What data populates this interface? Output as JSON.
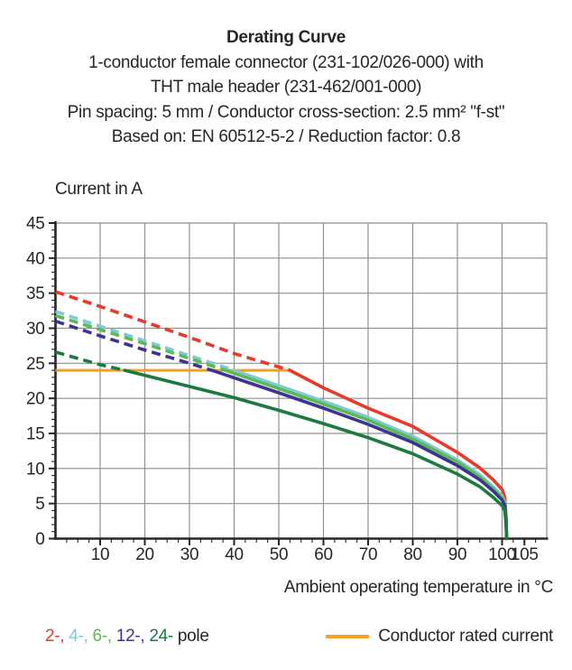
{
  "header": {
    "title": "Derating Curve",
    "lines": [
      "1-conductor female connector (231-102/026-000) with",
      "THT male header (231-462/001-000)",
      "Pin spacing: 5 mm / Conductor cross-section: 2.5 mm² \"f-st\"",
      "Based on: EN 60512-5-2 / Reduction factor: 0.8"
    ]
  },
  "y_axis_title": "Current in A",
  "x_axis_title": "Ambient operating temperature in °C",
  "legend": {
    "poles": [
      {
        "label": "2-",
        "color": "#e8392b"
      },
      {
        "label": "4-",
        "color": "#7cccd3"
      },
      {
        "label": "6-",
        "color": "#5eb854"
      },
      {
        "label": "12-",
        "color": "#3c3494"
      },
      {
        "label": "24-",
        "color": "#1a7a40"
      }
    ],
    "separator": ", ",
    "poles_suffix": "pole",
    "rated_label": "Conductor rated current",
    "rated_color": "#f5a01e"
  },
  "chart_data": {
    "type": "line",
    "title": "Derating Curve",
    "xlabel": "Ambient operating temperature in °C",
    "ylabel": "Current in A",
    "xlim": [
      0,
      110
    ],
    "ylim": [
      0,
      45
    ],
    "x_major_ticks": [
      10,
      20,
      30,
      40,
      50,
      60,
      70,
      80,
      90,
      100,
      105
    ],
    "x_minor_step": 2.5,
    "y_major_ticks": [
      0,
      5,
      10,
      15,
      20,
      25,
      30,
      35,
      40,
      45
    ],
    "y_minor_step": 1,
    "grid_x": [
      10,
      20,
      30,
      40,
      50,
      60,
      70,
      80,
      90,
      100,
      110
    ],
    "grid_y": [
      5,
      10,
      15,
      20,
      25,
      30,
      35,
      40,
      45
    ],
    "grid_on": true,
    "legend_position": "bottom",
    "dash_above": 24,
    "rated_current": {
      "value": 24,
      "x_start": 0,
      "x_end": 52.5,
      "color": "#f5a01e",
      "label": "Conductor rated current"
    },
    "colors": {
      "grid": "#8f8f8f",
      "axis": "#262626",
      "text": "#262626"
    },
    "series": [
      {
        "name": "2-pole",
        "color": "#e8392b",
        "points": [
          [
            0,
            35.2
          ],
          [
            10,
            33.1
          ],
          [
            20,
            30.9
          ],
          [
            30,
            28.7
          ],
          [
            40,
            26.4
          ],
          [
            52.5,
            24.0
          ],
          [
            60,
            21.5
          ],
          [
            70,
            18.6
          ],
          [
            80,
            16.0
          ],
          [
            90,
            12.3
          ],
          [
            95,
            10.1
          ],
          [
            98,
            8.4
          ],
          [
            100,
            7.0
          ],
          [
            100.6,
            5.9
          ],
          [
            100.9,
            3.0
          ],
          [
            101,
            0
          ]
        ]
      },
      {
        "name": "4-pole",
        "color": "#7cccd3",
        "points": [
          [
            0,
            32.4
          ],
          [
            10,
            30.3
          ],
          [
            20,
            28.2
          ],
          [
            30,
            26.1
          ],
          [
            40,
            24.0
          ],
          [
            50,
            21.8
          ],
          [
            60,
            19.6
          ],
          [
            70,
            17.3
          ],
          [
            80,
            14.6
          ],
          [
            90,
            11.2
          ],
          [
            95,
            9.1
          ],
          [
            98,
            7.4
          ],
          [
            100,
            6.1
          ],
          [
            100.6,
            5.2
          ],
          [
            100.9,
            2.6
          ],
          [
            101,
            0
          ]
        ]
      },
      {
        "name": "6-pole",
        "color": "#5eb854",
        "points": [
          [
            0,
            31.8
          ],
          [
            10,
            29.8
          ],
          [
            20,
            27.8
          ],
          [
            30,
            25.7
          ],
          [
            38,
            24.0
          ],
          [
            50,
            21.4
          ],
          [
            60,
            19.2
          ],
          [
            70,
            16.9
          ],
          [
            80,
            14.2
          ],
          [
            90,
            10.9
          ],
          [
            95,
            8.8
          ],
          [
            98,
            7.1
          ],
          [
            100,
            5.8
          ],
          [
            100.6,
            5.0
          ],
          [
            100.9,
            2.5
          ],
          [
            101,
            0
          ]
        ]
      },
      {
        "name": "12-pole",
        "color": "#3c3494",
        "points": [
          [
            0,
            31.0
          ],
          [
            10,
            28.9
          ],
          [
            20,
            26.9
          ],
          [
            30,
            25.0
          ],
          [
            35,
            24.0
          ],
          [
            50,
            20.8
          ],
          [
            60,
            18.6
          ],
          [
            70,
            16.3
          ],
          [
            80,
            13.7
          ],
          [
            90,
            10.4
          ],
          [
            95,
            8.4
          ],
          [
            98,
            6.8
          ],
          [
            100,
            5.5
          ],
          [
            100.6,
            4.7
          ],
          [
            100.9,
            2.4
          ],
          [
            101,
            0
          ]
        ]
      },
      {
        "name": "24-pole",
        "color": "#1a7a40",
        "points": [
          [
            0,
            26.6
          ],
          [
            10,
            24.8
          ],
          [
            15.5,
            24.0
          ],
          [
            30,
            21.7
          ],
          [
            40,
            20.1
          ],
          [
            50,
            18.3
          ],
          [
            60,
            16.4
          ],
          [
            70,
            14.4
          ],
          [
            80,
            12.1
          ],
          [
            90,
            9.2
          ],
          [
            95,
            7.4
          ],
          [
            98,
            5.9
          ],
          [
            100,
            4.7
          ],
          [
            100.6,
            4.0
          ],
          [
            100.9,
            2.0
          ],
          [
            101,
            0
          ]
        ]
      }
    ]
  }
}
